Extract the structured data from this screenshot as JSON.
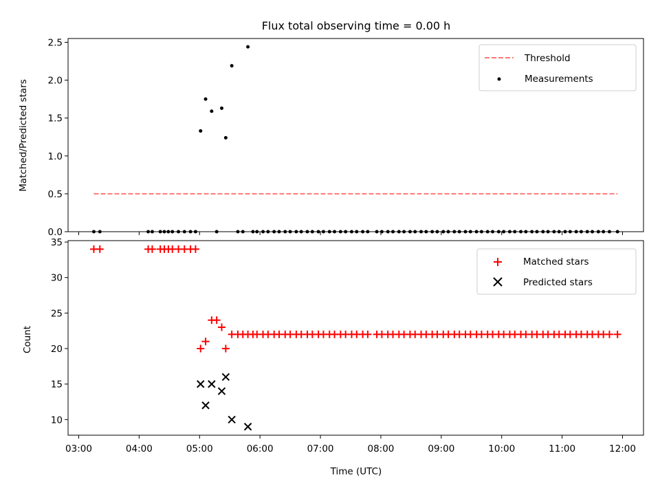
{
  "chart_data": {
    "title": "Flux total observing time = 0.00 h",
    "xlabel": "Time (UTC)",
    "x_ticks": [
      "03:00",
      "04:00",
      "05:00",
      "06:00",
      "07:00",
      "08:00",
      "09:00",
      "10:00",
      "11:00",
      "12:00"
    ],
    "panels": [
      {
        "type": "scatter",
        "ylabel": "Matched/Predicted stars",
        "ylim": [
          0,
          2.55
        ],
        "y_ticks": [
          "0.0",
          "0.5",
          "1.0",
          "1.5",
          "2.0",
          "2.5"
        ],
        "legend_position": "upper right",
        "threshold": {
          "name": "Threshold",
          "value": 0.5,
          "x_range": [
            "03:15",
            "11:55"
          ],
          "color": "#ff7777"
        },
        "series": [
          {
            "name": "Measurements",
            "color": "#000000",
            "marker": "dot",
            "points": [
              [
                "03:15",
                0
              ],
              [
                "03:21",
                0
              ],
              [
                "04:09",
                0
              ],
              [
                "04:13",
                0
              ],
              [
                "04:21",
                0
              ],
              [
                "04:25",
                0
              ],
              [
                "04:29",
                0
              ],
              [
                "04:33",
                0
              ],
              [
                "04:39",
                0
              ],
              [
                "04:45",
                0
              ],
              [
                "04:51",
                0
              ],
              [
                "04:56",
                0
              ],
              [
                "05:01",
                1.33
              ],
              [
                "05:06",
                1.75
              ],
              [
                "05:12",
                1.59
              ],
              [
                "05:17",
                0
              ],
              [
                "05:22",
                1.63
              ],
              [
                "05:26",
                1.24
              ],
              [
                "05:32",
                2.19
              ],
              [
                "05:38",
                0
              ],
              [
                "05:43",
                0
              ],
              [
                "05:48",
                2.44
              ],
              [
                "05:53",
                0
              ],
              [
                "05:57",
                0
              ],
              [
                "06:03",
                0
              ],
              [
                "06:08",
                0
              ],
              [
                "06:14",
                0
              ],
              [
                "06:19",
                0
              ],
              [
                "06:25",
                0
              ],
              [
                "06:30",
                0
              ],
              [
                "06:36",
                0
              ],
              [
                "06:41",
                0
              ],
              [
                "06:47",
                0
              ],
              [
                "06:52",
                0
              ],
              [
                "06:58",
                0
              ],
              [
                "07:03",
                0
              ],
              [
                "07:09",
                0
              ],
              [
                "07:14",
                0
              ],
              [
                "07:20",
                0
              ],
              [
                "07:25",
                0
              ],
              [
                "07:31",
                0
              ],
              [
                "07:36",
                0
              ],
              [
                "07:42",
                0
              ],
              [
                "07:47",
                0
              ],
              [
                "07:56",
                0
              ],
              [
                "08:01",
                0
              ],
              [
                "08:07",
                0
              ],
              [
                "08:12",
                0
              ],
              [
                "08:18",
                0
              ],
              [
                "08:23",
                0
              ],
              [
                "08:29",
                0
              ],
              [
                "08:34",
                0
              ],
              [
                "08:40",
                0
              ],
              [
                "08:45",
                0
              ],
              [
                "08:51",
                0
              ],
              [
                "08:56",
                0
              ],
              [
                "09:02",
                0
              ],
              [
                "09:07",
                0
              ],
              [
                "09:13",
                0
              ],
              [
                "09:18",
                0
              ],
              [
                "09:24",
                0
              ],
              [
                "09:29",
                0
              ],
              [
                "09:35",
                0
              ],
              [
                "09:40",
                0
              ],
              [
                "09:46",
                0
              ],
              [
                "09:51",
                0
              ],
              [
                "09:57",
                0
              ],
              [
                "10:02",
                0
              ],
              [
                "10:08",
                0
              ],
              [
                "10:13",
                0
              ],
              [
                "10:19",
                0
              ],
              [
                "10:24",
                0
              ],
              [
                "10:30",
                0
              ],
              [
                "10:35",
                0
              ],
              [
                "10:41",
                0
              ],
              [
                "10:46",
                0
              ],
              [
                "10:52",
                0
              ],
              [
                "10:57",
                0
              ],
              [
                "11:03",
                0
              ],
              [
                "11:08",
                0
              ],
              [
                "11:14",
                0
              ],
              [
                "11:19",
                0
              ],
              [
                "11:25",
                0
              ],
              [
                "11:30",
                0
              ],
              [
                "11:36",
                0
              ],
              [
                "11:41",
                0
              ],
              [
                "11:47",
                0
              ],
              [
                "11:55",
                0
              ]
            ]
          }
        ]
      },
      {
        "type": "scatter",
        "ylabel": "Count",
        "ylim": [
          7.8,
          35.2
        ],
        "y_ticks": [
          "10",
          "15",
          "20",
          "25",
          "30",
          "35"
        ],
        "legend_position": "upper right",
        "series": [
          {
            "name": "Matched stars",
            "color": "#ff0000",
            "marker": "plus",
            "points": [
              [
                "03:15",
                34
              ],
              [
                "03:21",
                34
              ],
              [
                "04:09",
                34
              ],
              [
                "04:13",
                34
              ],
              [
                "04:21",
                34
              ],
              [
                "04:25",
                34
              ],
              [
                "04:29",
                34
              ],
              [
                "04:33",
                34
              ],
              [
                "04:39",
                34
              ],
              [
                "04:45",
                34
              ],
              [
                "04:51",
                34
              ],
              [
                "04:56",
                34
              ],
              [
                "05:01",
                20
              ],
              [
                "05:06",
                21
              ],
              [
                "05:12",
                24
              ],
              [
                "05:17",
                24
              ],
              [
                "05:22",
                23
              ],
              [
                "05:26",
                20
              ],
              [
                "05:32",
                22
              ],
              [
                "05:38",
                22
              ],
              [
                "05:43",
                22
              ],
              [
                "05:48",
                22
              ],
              [
                "05:53",
                22
              ],
              [
                "05:57",
                22
              ],
              [
                "06:03",
                22
              ],
              [
                "06:08",
                22
              ],
              [
                "06:14",
                22
              ],
              [
                "06:19",
                22
              ],
              [
                "06:25",
                22
              ],
              [
                "06:30",
                22
              ],
              [
                "06:36",
                22
              ],
              [
                "06:41",
                22
              ],
              [
                "06:47",
                22
              ],
              [
                "06:52",
                22
              ],
              [
                "06:58",
                22
              ],
              [
                "07:03",
                22
              ],
              [
                "07:09",
                22
              ],
              [
                "07:14",
                22
              ],
              [
                "07:20",
                22
              ],
              [
                "07:25",
                22
              ],
              [
                "07:31",
                22
              ],
              [
                "07:36",
                22
              ],
              [
                "07:42",
                22
              ],
              [
                "07:47",
                22
              ],
              [
                "07:56",
                22
              ],
              [
                "08:01",
                22
              ],
              [
                "08:07",
                22
              ],
              [
                "08:12",
                22
              ],
              [
                "08:18",
                22
              ],
              [
                "08:23",
                22
              ],
              [
                "08:29",
                22
              ],
              [
                "08:34",
                22
              ],
              [
                "08:40",
                22
              ],
              [
                "08:45",
                22
              ],
              [
                "08:51",
                22
              ],
              [
                "08:56",
                22
              ],
              [
                "09:02",
                22
              ],
              [
                "09:07",
                22
              ],
              [
                "09:13",
                22
              ],
              [
                "09:18",
                22
              ],
              [
                "09:24",
                22
              ],
              [
                "09:29",
                22
              ],
              [
                "09:35",
                22
              ],
              [
                "09:40",
                22
              ],
              [
                "09:46",
                22
              ],
              [
                "09:51",
                22
              ],
              [
                "09:57",
                22
              ],
              [
                "10:02",
                22
              ],
              [
                "10:08",
                22
              ],
              [
                "10:13",
                22
              ],
              [
                "10:19",
                22
              ],
              [
                "10:24",
                22
              ],
              [
                "10:30",
                22
              ],
              [
                "10:35",
                22
              ],
              [
                "10:41",
                22
              ],
              [
                "10:46",
                22
              ],
              [
                "10:52",
                22
              ],
              [
                "10:57",
                22
              ],
              [
                "11:03",
                22
              ],
              [
                "11:08",
                22
              ],
              [
                "11:14",
                22
              ],
              [
                "11:19",
                22
              ],
              [
                "11:25",
                22
              ],
              [
                "11:30",
                22
              ],
              [
                "11:36",
                22
              ],
              [
                "11:41",
                22
              ],
              [
                "11:47",
                22
              ],
              [
                "11:55",
                22
              ]
            ]
          },
          {
            "name": "Predicted stars",
            "color": "#000000",
            "marker": "x",
            "points": [
              [
                "05:01",
                15
              ],
              [
                "05:06",
                12
              ],
              [
                "05:12",
                15
              ],
              [
                "05:22",
                14
              ],
              [
                "05:26",
                16
              ],
              [
                "05:32",
                10
              ],
              [
                "05:48",
                9
              ]
            ]
          }
        ]
      }
    ]
  }
}
